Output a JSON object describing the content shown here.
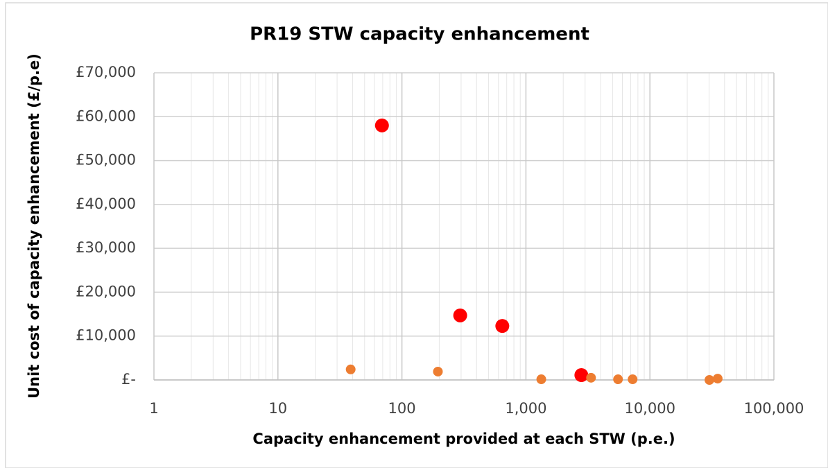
{
  "chart_data": {
    "type": "scatter",
    "title": "PR19 STW capacity enhancement",
    "xlabel": "Capacity enhancement provided at each STW (p.e.)",
    "ylabel": "Unit cost of capacity enhancement (£/p.e)",
    "xscale": "log",
    "xlim": [
      1,
      100000
    ],
    "xticks": [
      1,
      10,
      100,
      {
        "value": 1000,
        "label": "1,000"
      },
      {
        "value": 10000,
        "label": "10,000"
      },
      {
        "value": 100000,
        "label": "100,000"
      }
    ],
    "ylim": [
      0,
      70000
    ],
    "yticks": [
      {
        "value": 0,
        "label": "£-"
      },
      {
        "value": 10000,
        "label": "£10,000"
      },
      {
        "value": 20000,
        "label": "£20,000"
      },
      {
        "value": 30000,
        "label": "£30,000"
      },
      {
        "value": 40000,
        "label": "£40,000"
      },
      {
        "value": 50000,
        "label": "£50,000"
      },
      {
        "value": 60000,
        "label": "£60,000"
      },
      {
        "value": 70000,
        "label": "£70,000"
      }
    ],
    "grid": true,
    "minor_grid": true,
    "series": [
      {
        "color": "#ff0000",
        "marker_size": 10,
        "x": [
          69,
          295,
          645,
          2800
        ],
        "values": [
          58000,
          14700,
          12300,
          1100
        ]
      },
      {
        "color": "#ed7d31",
        "marker_size": 7,
        "x": [
          38.6,
          195,
          1330,
          3350,
          5530,
          7250,
          30200,
          35200
        ],
        "values": [
          2400,
          1900,
          150,
          500,
          150,
          150,
          0,
          300
        ]
      }
    ]
  }
}
